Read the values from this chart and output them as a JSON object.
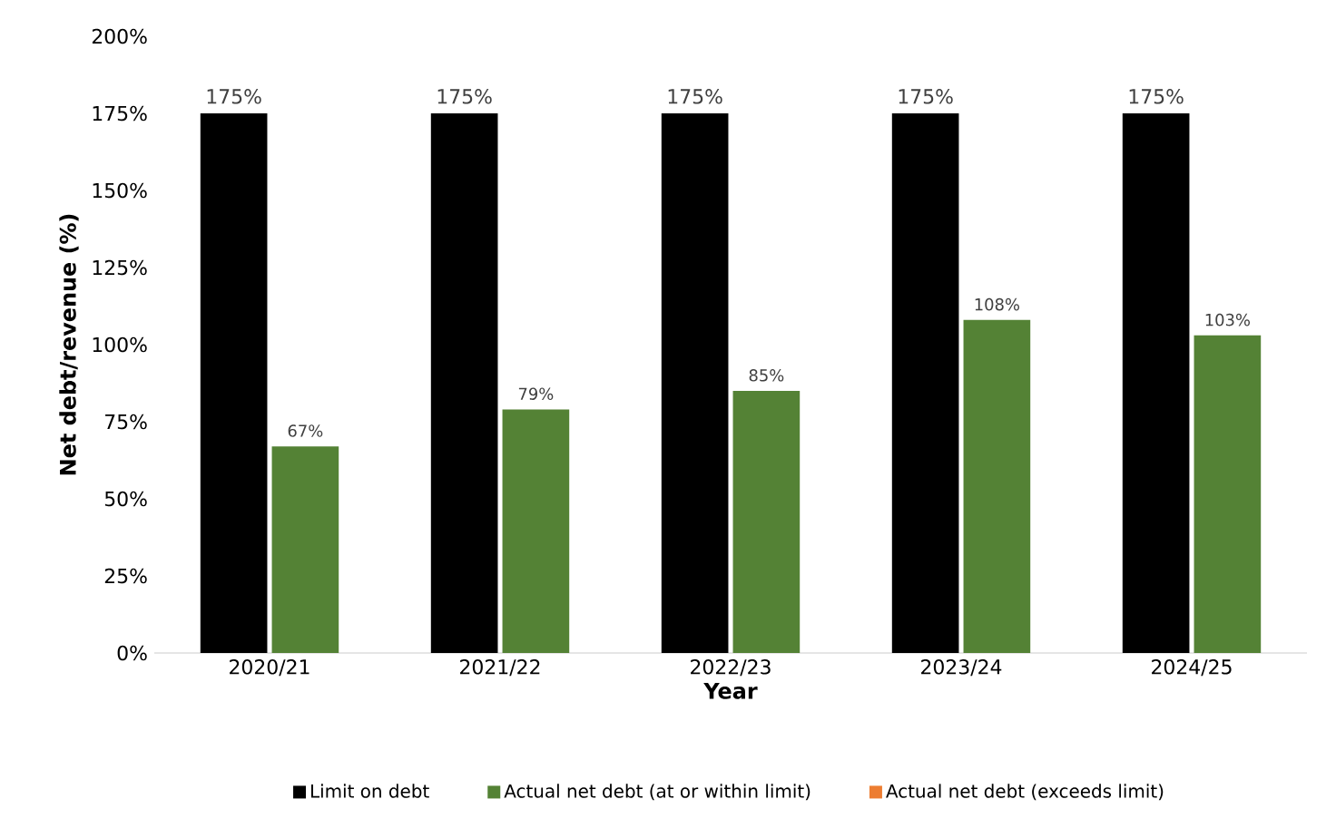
{
  "chart_data": {
    "type": "bar",
    "xlabel": "Year",
    "ylabel": "Net debt/revenue (%)",
    "categories": [
      "2020/21",
      "2021/22",
      "2022/23",
      "2023/24",
      "2024/25"
    ],
    "series": [
      {
        "name": "Limit on debt",
        "color": "#000000",
        "values": [
          175,
          175,
          175,
          175,
          175
        ],
        "value_labels": [
          "175%",
          "175%",
          "175%",
          "175%",
          "175%"
        ]
      },
      {
        "name": "Actual net debt (at or within limit)",
        "color": "#548235",
        "values": [
          67,
          79,
          85,
          108,
          103
        ],
        "value_labels": [
          "67%",
          "79%",
          "85%",
          "108%",
          "103%"
        ]
      },
      {
        "name": "Actual net debt (exceeds limit)",
        "color": "#ed7d31",
        "values": [
          null,
          null,
          null,
          null,
          null
        ]
      }
    ],
    "ylim": [
      0,
      200
    ],
    "yticks": [
      {
        "value": 0,
        "label": "0%"
      },
      {
        "value": 25,
        "label": "25%"
      },
      {
        "value": 50,
        "label": "50%"
      },
      {
        "value": 75,
        "label": "75%"
      },
      {
        "value": 100,
        "label": "100%"
      },
      {
        "value": 125,
        "label": "125%"
      },
      {
        "value": 150,
        "label": "150%"
      },
      {
        "value": 175,
        "label": "175%"
      },
      {
        "value": 200,
        "label": "200%"
      }
    ],
    "legend": "bottom",
    "grid": false
  }
}
